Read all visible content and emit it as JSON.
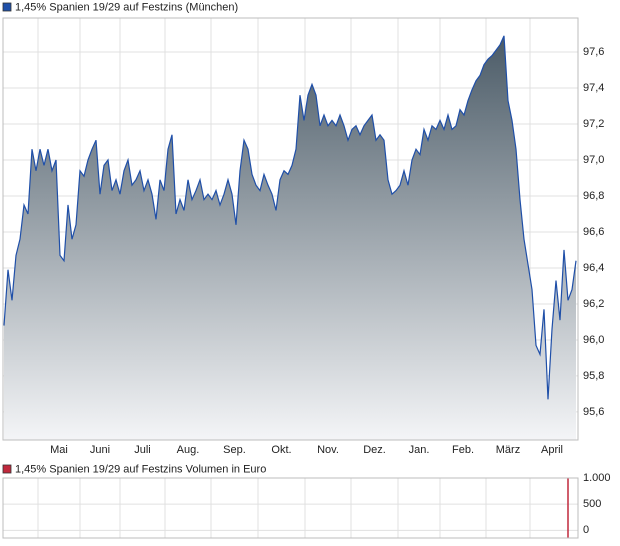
{
  "chart_data": [
    {
      "type": "area",
      "legend": "1,45% Spanien 19/29 auf Festzins (München)",
      "color": "#1f4fa8",
      "fill_top": "#4b5b67",
      "fill_bottom": "#f4f5f7",
      "grid": true,
      "xlim": [
        -0.25,
        143.5
      ],
      "xticks": [
        {
          "value": 8.5,
          "label": "Mai"
        },
        {
          "value": 19,
          "label": "Juni"
        },
        {
          "value": 29,
          "label": "Juli"
        },
        {
          "value": 40.25,
          "label": "Aug."
        },
        {
          "value": 51.75,
          "label": "Sep."
        },
        {
          "value": 63.5,
          "label": "Okt."
        },
        {
          "value": 75.25,
          "label": "Nov."
        },
        {
          "value": 86.75,
          "label": "Dez."
        },
        {
          "value": 98.5,
          "label": "Jan."
        },
        {
          "value": 109,
          "label": "Feb."
        },
        {
          "value": 120.5,
          "label": "März"
        },
        {
          "value": 131.5,
          "label": "April"
        }
      ],
      "ylim": [
        95.444,
        97.789
      ],
      "yticks": [
        {
          "value": 95.6,
          "label": "95,6"
        },
        {
          "value": 95.8,
          "label": "95,8"
        },
        {
          "value": 96.0,
          "label": "96,0"
        },
        {
          "value": 96.2,
          "label": "96,2"
        },
        {
          "value": 96.4,
          "label": "96,4"
        },
        {
          "value": 96.6,
          "label": "96,6"
        },
        {
          "value": 96.8,
          "label": "96,8"
        },
        {
          "value": 97.0,
          "label": "97,0"
        },
        {
          "value": 97.2,
          "label": "97,2"
        },
        {
          "value": 97.4,
          "label": "97,4"
        },
        {
          "value": 97.6,
          "label": "97,6"
        }
      ],
      "values": [
        96.08,
        96.39,
        96.22,
        96.47,
        96.56,
        96.75,
        96.7,
        97.06,
        96.94,
        97.06,
        96.97,
        97.06,
        96.94,
        97.0,
        96.47,
        96.44,
        96.75,
        96.56,
        96.64,
        96.94,
        96.91,
        97.0,
        97.06,
        97.11,
        96.81,
        96.97,
        97.0,
        96.83,
        96.89,
        96.81,
        96.94,
        97.0,
        96.86,
        96.89,
        96.94,
        96.83,
        96.89,
        96.81,
        96.67,
        96.89,
        96.83,
        97.06,
        97.14,
        96.7,
        96.78,
        96.72,
        96.89,
        96.78,
        96.83,
        96.89,
        96.78,
        96.81,
        96.78,
        96.83,
        96.75,
        96.81,
        96.89,
        96.81,
        96.64,
        96.94,
        97.11,
        97.06,
        96.92,
        96.86,
        96.83,
        96.92,
        96.86,
        96.81,
        96.72,
        96.89,
        96.94,
        96.92,
        96.97,
        97.06,
        97.36,
        97.22,
        97.36,
        97.42,
        97.36,
        97.19,
        97.25,
        97.19,
        97.22,
        97.19,
        97.25,
        97.19,
        97.11,
        97.17,
        97.19,
        97.14,
        97.19,
        97.22,
        97.25,
        97.11,
        97.14,
        97.11,
        96.89,
        96.81,
        96.83,
        96.86,
        96.94,
        96.86,
        97.0,
        97.06,
        97.03,
        97.17,
        97.11,
        97.19,
        97.17,
        97.22,
        97.17,
        97.25,
        97.17,
        97.19,
        97.28,
        97.25,
        97.33,
        97.39,
        97.44,
        97.47,
        97.53,
        97.56,
        97.58,
        97.61,
        97.64,
        97.69,
        97.33,
        97.22,
        97.06,
        96.78,
        96.56,
        96.42,
        96.28,
        95.97,
        95.92,
        96.17,
        95.67,
        96.06,
        96.33,
        96.11,
        96.5,
        96.22,
        96.28,
        96.44
      ]
    },
    {
      "type": "bar",
      "legend": "1,45% Spanien 19/29 auf Festzins Volumen in Euro",
      "color": "#c0283c",
      "grid": true,
      "xlim": [
        -0.25,
        143.5
      ],
      "ylim": [
        -70,
        1000
      ],
      "yticks": [
        0,
        500,
        {
          "value": 1000,
          "label": "1.000"
        }
      ],
      "x": [
        141
      ],
      "values": [
        1000
      ]
    }
  ]
}
